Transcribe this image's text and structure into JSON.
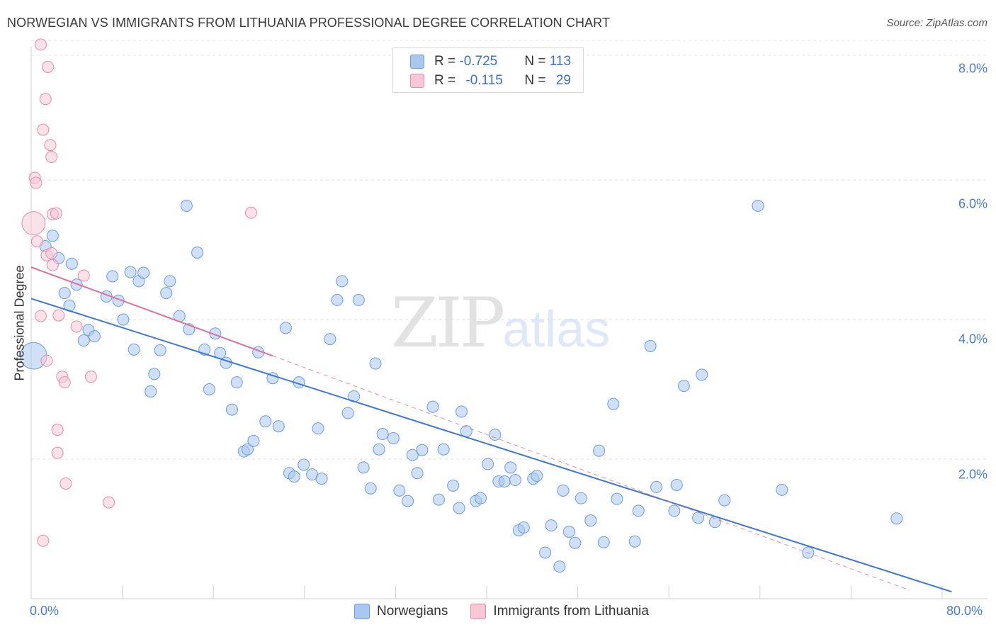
{
  "title": "NORWEGIAN VS IMMIGRANTS FROM LITHUANIA PROFESSIONAL DEGREE CORRELATION CHART",
  "source": "Source: ZipAtlas.com",
  "watermark": {
    "zip": "ZIP",
    "atlas": "atlas"
  },
  "legend": {
    "r_label": "R = ",
    "n_label": "N = ",
    "rows": [
      {
        "r": "-0.725",
        "n": "113",
        "color": "#a9c8f0",
        "edge": "#6b9be0"
      },
      {
        "r": "-0.115",
        "n": "29",
        "color": "#f8c8d6",
        "edge": "#e88aa8"
      }
    ]
  },
  "bottom_legend": [
    "Norwegians",
    "Immigrants from Lithuania"
  ],
  "chart_data": {
    "type": "scatter",
    "title": "NORWEGIAN VS IMMIGRANTS FROM LITHUANIA PROFESSIONAL DEGREE CORRELATION CHART",
    "xlabel": "",
    "ylabel": "Professional Degree",
    "xlim": [
      0,
      80
    ],
    "ylim": [
      0,
      8
    ],
    "x_tick_labels": [
      "0.0%",
      "80.0%"
    ],
    "y_ticks": [
      2,
      4,
      6,
      8
    ],
    "y_tick_labels": [
      "2.0%",
      "4.0%",
      "6.0%",
      "8.0%"
    ],
    "grid": true,
    "series": [
      {
        "name": "Norwegians",
        "color": "#a9c8f0",
        "edge": "#6b9be0",
        "line_color": "#3a78d4",
        "trend": {
          "x0": 0,
          "y0": 4.3,
          "x1": 77,
          "y1": 0.1
        },
        "points": [
          [
            0.2,
            3.48,
            1.6
          ],
          [
            1.2,
            5.05,
            1
          ],
          [
            1.8,
            5.2,
            1
          ],
          [
            2.3,
            4.88,
            1
          ],
          [
            3.4,
            4.8,
            1
          ],
          [
            3.8,
            4.5,
            1
          ],
          [
            4.4,
            3.7,
            1
          ],
          [
            2.8,
            4.38,
            1
          ],
          [
            3.2,
            4.2,
            1
          ],
          [
            4.8,
            3.85,
            1
          ],
          [
            5.3,
            3.76,
            1
          ],
          [
            6.3,
            4.33,
            1
          ],
          [
            6.8,
            4.62,
            1
          ],
          [
            7.3,
            4.27,
            1
          ],
          [
            7.7,
            4.0,
            1
          ],
          [
            8.3,
            4.68,
            1
          ],
          [
            8.6,
            3.57,
            1
          ],
          [
            9.0,
            4.55,
            1
          ],
          [
            9.4,
            4.67,
            1
          ],
          [
            10.0,
            2.97,
            1
          ],
          [
            10.3,
            3.22,
            1
          ],
          [
            10.8,
            3.56,
            1
          ],
          [
            11.3,
            4.38,
            1
          ],
          [
            11.6,
            4.55,
            1
          ],
          [
            12.4,
            4.05,
            1
          ],
          [
            13.2,
            3.86,
            1
          ],
          [
            13.0,
            5.63,
            1
          ],
          [
            13.9,
            4.96,
            1
          ],
          [
            14.5,
            3.57,
            1
          ],
          [
            14.9,
            3.0,
            1
          ],
          [
            15.4,
            3.8,
            1
          ],
          [
            15.8,
            3.52,
            1
          ],
          [
            16.3,
            3.38,
            1
          ],
          [
            16.8,
            2.71,
            1
          ],
          [
            17.2,
            3.1,
            1
          ],
          [
            17.8,
            2.11,
            1
          ],
          [
            18.1,
            2.14,
            1
          ],
          [
            18.6,
            2.26,
            1
          ],
          [
            19.0,
            3.53,
            1
          ],
          [
            19.6,
            2.54,
            1
          ],
          [
            20.2,
            3.16,
            1
          ],
          [
            20.7,
            2.47,
            1
          ],
          [
            21.3,
            3.88,
            1
          ],
          [
            21.6,
            1.8,
            1
          ],
          [
            22.0,
            1.75,
            1
          ],
          [
            22.4,
            3.1,
            1
          ],
          [
            22.8,
            1.92,
            1
          ],
          [
            23.5,
            1.78,
            1
          ],
          [
            24.0,
            2.44,
            1
          ],
          [
            24.3,
            1.72,
            1
          ],
          [
            25.0,
            3.72,
            1
          ],
          [
            25.6,
            4.28,
            1
          ],
          [
            26.0,
            4.55,
            1
          ],
          [
            26.5,
            2.66,
            1
          ],
          [
            27.0,
            2.9,
            1
          ],
          [
            27.4,
            4.28,
            1
          ],
          [
            27.8,
            1.88,
            1
          ],
          [
            28.4,
            1.58,
            1
          ],
          [
            28.8,
            3.37,
            1
          ],
          [
            29.1,
            2.14,
            1
          ],
          [
            29.4,
            2.36,
            1
          ],
          [
            30.3,
            2.3,
            1
          ],
          [
            30.8,
            1.55,
            1
          ],
          [
            31.5,
            1.4,
            1
          ],
          [
            31.9,
            2.06,
            1
          ],
          [
            32.3,
            1.8,
            1
          ],
          [
            32.7,
            2.13,
            1
          ],
          [
            33.6,
            2.75,
            1
          ],
          [
            34.1,
            1.42,
            1
          ],
          [
            34.5,
            2.14,
            1
          ],
          [
            35.3,
            1.62,
            1
          ],
          [
            35.8,
            1.3,
            1
          ],
          [
            36.0,
            2.68,
            1
          ],
          [
            36.4,
            2.4,
            1
          ],
          [
            37.2,
            1.4,
            1
          ],
          [
            37.6,
            1.44,
            1
          ],
          [
            38.2,
            1.93,
            1
          ],
          [
            38.8,
            2.35,
            1
          ],
          [
            39.1,
            1.68,
            1
          ],
          [
            39.6,
            1.68,
            1
          ],
          [
            40.1,
            1.88,
            1
          ],
          [
            40.5,
            1.7,
            1
          ],
          [
            40.8,
            0.98,
            1
          ],
          [
            41.2,
            1.02,
            1
          ],
          [
            42.0,
            1.72,
            1
          ],
          [
            42.3,
            1.76,
            1
          ],
          [
            43.0,
            0.66,
            1
          ],
          [
            43.5,
            1.05,
            1
          ],
          [
            44.2,
            0.46,
            1
          ],
          [
            44.5,
            1.55,
            1
          ],
          [
            45.0,
            0.96,
            1
          ],
          [
            45.5,
            0.8,
            1
          ],
          [
            46.0,
            1.44,
            1
          ],
          [
            46.8,
            1.12,
            1
          ],
          [
            47.5,
            2.12,
            1
          ],
          [
            47.9,
            0.81,
            1
          ],
          [
            48.7,
            2.79,
            1
          ],
          [
            49.0,
            1.43,
            1
          ],
          [
            50.5,
            0.82,
            1
          ],
          [
            50.8,
            1.26,
            1
          ],
          [
            51.8,
            3.62,
            1
          ],
          [
            52.3,
            1.6,
            1
          ],
          [
            53.8,
            1.26,
            1
          ],
          [
            54.6,
            3.05,
            1
          ],
          [
            54.0,
            1.63,
            1
          ],
          [
            55.8,
            1.16,
            1
          ],
          [
            56.1,
            3.21,
            1
          ],
          [
            57.2,
            1.1,
            1
          ],
          [
            58.0,
            1.41,
            1
          ],
          [
            60.8,
            5.63,
            1
          ],
          [
            62.8,
            1.56,
            1
          ],
          [
            65.0,
            0.66,
            1
          ],
          [
            72.4,
            1.15,
            1
          ]
        ]
      },
      {
        "name": "Immigrants from Lithuania",
        "color": "#f8c8d6",
        "edge": "#e88aa8",
        "line_color": "#e07098",
        "trend": {
          "x0": 0,
          "y0": 4.75,
          "x1": 20.2,
          "y1": 3.48
        },
        "trend_dashed": {
          "x0": 20.2,
          "y0": 3.48,
          "x1": 73.5,
          "y1": 0.12
        },
        "points": [
          [
            0.2,
            5.38,
            1.3
          ],
          [
            0.3,
            6.03,
            1
          ],
          [
            0.4,
            5.96,
            1
          ],
          [
            0.5,
            5.12,
            1
          ],
          [
            0.8,
            7.94,
            1
          ],
          [
            1.0,
            6.72,
            1
          ],
          [
            1.2,
            7.16,
            1
          ],
          [
            1.4,
            7.62,
            1
          ],
          [
            1.6,
            6.5,
            1
          ],
          [
            1.7,
            6.33,
            1
          ],
          [
            1.8,
            5.51,
            1
          ],
          [
            2.1,
            5.52,
            1
          ],
          [
            1.3,
            4.92,
            1
          ],
          [
            2.3,
            4.06,
            1
          ],
          [
            0.8,
            4.05,
            1
          ],
          [
            1.3,
            3.41,
            1
          ],
          [
            1.7,
            4.95,
            1
          ],
          [
            1.8,
            4.78,
            1
          ],
          [
            2.2,
            2.42,
            1
          ],
          [
            2.2,
            2.09,
            1
          ],
          [
            2.6,
            3.18,
            1
          ],
          [
            2.8,
            3.1,
            1
          ],
          [
            2.9,
            1.65,
            1
          ],
          [
            3.8,
            3.9,
            1
          ],
          [
            4.4,
            4.63,
            1
          ],
          [
            5.0,
            3.18,
            1
          ],
          [
            6.5,
            1.38,
            1
          ],
          [
            1.0,
            0.83,
            1
          ],
          [
            18.4,
            5.53,
            1
          ]
        ]
      }
    ]
  }
}
